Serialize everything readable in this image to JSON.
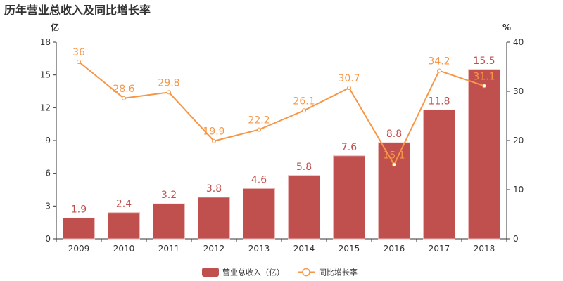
{
  "chart_data": {
    "type": "bar+line",
    "title": "历年营业总收入及同比增长率",
    "categories": [
      "2009",
      "2010",
      "2011",
      "2012",
      "2013",
      "2014",
      "2015",
      "2016",
      "2017",
      "2018"
    ],
    "left_axis": {
      "unit": "亿",
      "ylim": [
        0,
        18
      ],
      "ticks": [
        0,
        3,
        6,
        9,
        12,
        15,
        18
      ]
    },
    "right_axis": {
      "unit": "%",
      "ylim": [
        0,
        40
      ],
      "ticks": [
        0,
        10,
        20,
        30,
        40
      ]
    },
    "series": [
      {
        "name": "营业总收入（亿）",
        "type": "bar",
        "axis": "left",
        "color": "#c0504d",
        "values": [
          1.9,
          2.4,
          3.2,
          3.8,
          4.6,
          5.8,
          7.6,
          8.8,
          11.8,
          15.5
        ]
      },
      {
        "name": "同比增长率",
        "type": "line",
        "axis": "right",
        "color": "#f79646",
        "values": [
          36,
          28.6,
          29.8,
          19.9,
          22.2,
          26.1,
          30.7,
          15.1,
          34.2,
          31.1
        ]
      }
    ],
    "grid": false,
    "legend_position": "bottom"
  }
}
